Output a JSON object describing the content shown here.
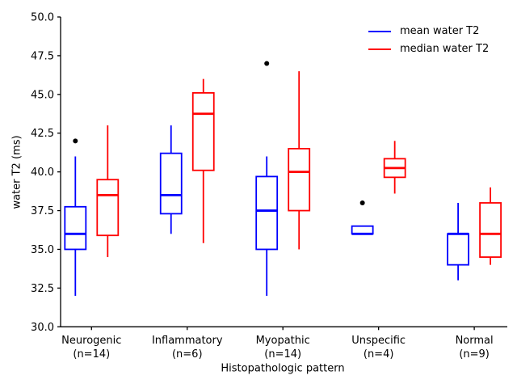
{
  "figure": {
    "background": "#ffffff"
  },
  "chart_data": {
    "type": "boxplot",
    "title": "",
    "xlabel": "Histopathologic pattern",
    "ylabel": "water T2 (ms)",
    "ylim": [
      30.0,
      50.0
    ],
    "yticks": [
      30.0,
      32.5,
      35.0,
      37.5,
      40.0,
      42.5,
      45.0,
      47.5,
      50.0
    ],
    "grid": false,
    "legend_position": "upper right",
    "axis_color": "#000000",
    "flier_color": "#000000",
    "categories": [
      {
        "label": "Neurogenic",
        "sublabel": "(n=14)"
      },
      {
        "label": "Inflammatory",
        "sublabel": "(n=6)"
      },
      {
        "label": "Myopathic",
        "sublabel": "(n=14)"
      },
      {
        "label": "Unspecific",
        "sublabel": "(n=4)"
      },
      {
        "label": "Normal",
        "sublabel": "(n=9)"
      }
    ],
    "series": [
      {
        "name": "mean water T2",
        "color": "#0000ff",
        "boxes": [
          {
            "whislo": 32.0,
            "q1": 35.0,
            "med": 36.0,
            "q3": 37.75,
            "whishi": 41.0,
            "fliers": [
              42.0
            ]
          },
          {
            "whislo": 36.0,
            "q1": 37.3,
            "med": 38.5,
            "q3": 41.2,
            "whishi": 43.0,
            "fliers": []
          },
          {
            "whislo": 32.0,
            "q1": 35.0,
            "med": 37.5,
            "q3": 39.7,
            "whishi": 41.0,
            "fliers": [
              47.0
            ]
          },
          {
            "whislo": 36.0,
            "q1": 36.0,
            "med": 36.0,
            "q3": 36.5,
            "whishi": 36.5,
            "fliers": [
              38.0
            ]
          },
          {
            "whislo": 33.0,
            "q1": 34.0,
            "med": 36.0,
            "q3": 36.0,
            "whishi": 38.0,
            "fliers": []
          }
        ]
      },
      {
        "name": "median water T2",
        "color": "#ff0000",
        "boxes": [
          {
            "whislo": 34.5,
            "q1": 35.9,
            "med": 38.5,
            "q3": 39.5,
            "whishi": 43.0,
            "fliers": []
          },
          {
            "whislo": 35.4,
            "q1": 40.1,
            "med": 43.75,
            "q3": 45.1,
            "whishi": 46.0,
            "fliers": []
          },
          {
            "whislo": 35.0,
            "q1": 37.5,
            "med": 40.0,
            "q3": 41.5,
            "whishi": 46.5,
            "fliers": []
          },
          {
            "whislo": 38.6,
            "q1": 39.65,
            "med": 40.25,
            "q3": 40.85,
            "whishi": 42.0,
            "fliers": []
          },
          {
            "whislo": 34.0,
            "q1": 34.5,
            "med": 36.0,
            "q3": 38.0,
            "whishi": 39.0,
            "fliers": []
          }
        ]
      }
    ]
  }
}
